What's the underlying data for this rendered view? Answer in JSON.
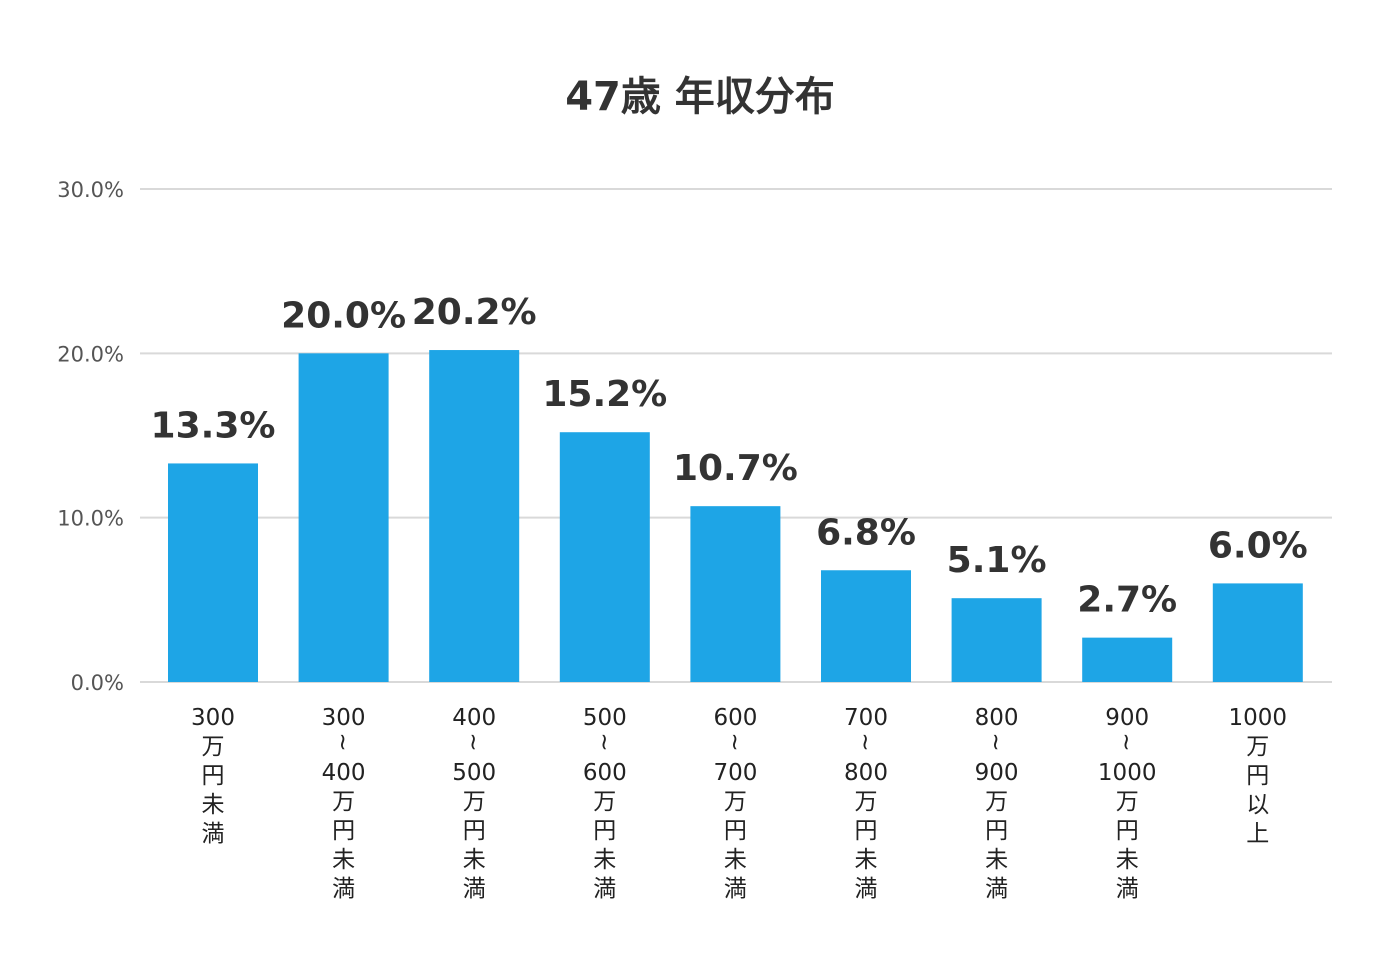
{
  "chart_data": {
    "type": "bar",
    "title": "47歳 年収分布",
    "xlabel": "",
    "ylabel": "",
    "ylim": [
      0,
      30
    ],
    "yticks": [
      "0.0%",
      "10.0%",
      "20.0%",
      "30.0%"
    ],
    "grid": true,
    "bar_color": "#1ea5e6",
    "categories": [
      [
        "300",
        "万",
        "円",
        "未",
        "満"
      ],
      [
        "300",
        "~",
        "400",
        "万",
        "円",
        "未",
        "満"
      ],
      [
        "400",
        "~",
        "500",
        "万",
        "円",
        "未",
        "満"
      ],
      [
        "500",
        "~",
        "600",
        "万",
        "円",
        "未",
        "満"
      ],
      [
        "600",
        "~",
        "700",
        "万",
        "円",
        "未",
        "満"
      ],
      [
        "700",
        "~",
        "800",
        "万",
        "円",
        "未",
        "満"
      ],
      [
        "800",
        "~",
        "900",
        "万",
        "円",
        "未",
        "満"
      ],
      [
        "900",
        "~",
        "1000",
        "万",
        "円",
        "未",
        "満"
      ],
      [
        "1000",
        "万",
        "円",
        "以",
        "上"
      ]
    ],
    "values": [
      13.3,
      20.0,
      20.2,
      15.2,
      10.7,
      6.8,
      5.1,
      2.7,
      6.0
    ],
    "data_labels": [
      "13.3%",
      "20.0%",
      "20.2%",
      "15.2%",
      "10.7%",
      "6.8%",
      "5.1%",
      "2.7%",
      "6.0%"
    ]
  }
}
